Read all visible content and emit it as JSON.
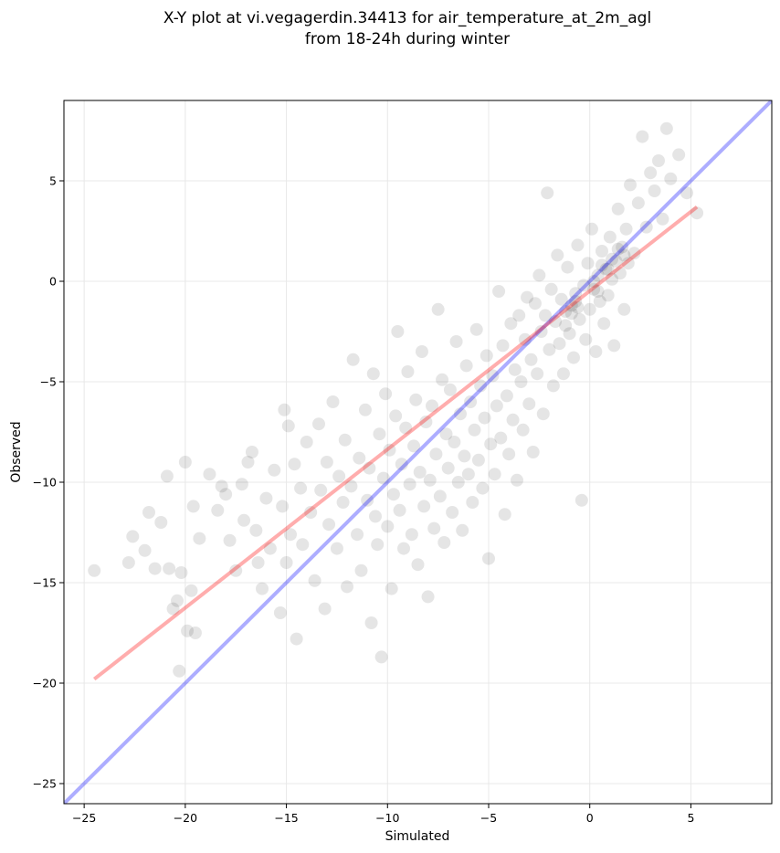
{
  "chart_data": {
    "type": "scatter",
    "title_line1": "X-Y plot at vi.vegagerdin.34413 for air_temperature_at_2m_agl",
    "title_line2": "from 18-24h during winter",
    "xlabel": "Simulated",
    "ylabel": "Observed",
    "xlim": [
      -26,
      9
    ],
    "ylim": [
      -26,
      9
    ],
    "xticks": [
      -25,
      -20,
      -15,
      -10,
      -5,
      0,
      5
    ],
    "yticks": [
      -25,
      -20,
      -15,
      -10,
      -5,
      0,
      5
    ],
    "tick_labels": [
      "−25",
      "−20",
      "−15",
      "−10",
      "−5",
      "0",
      "5"
    ],
    "grid": true,
    "point_color": "#000000",
    "point_opacity": 0.1,
    "identity_line": {
      "color": "#0000ff",
      "x": [
        -26,
        9
      ],
      "y": [
        -26,
        9
      ]
    },
    "fit_line": {
      "color": "#ff0000",
      "x": [
        -24.5,
        5.3
      ],
      "y": [
        -19.8,
        3.7
      ]
    },
    "points": [
      [
        -24.5,
        -14.4
      ],
      [
        -22.8,
        -14.0
      ],
      [
        -22.6,
        -12.7
      ],
      [
        -22.0,
        -13.4
      ],
      [
        -21.8,
        -11.5
      ],
      [
        -21.5,
        -14.3
      ],
      [
        -21.2,
        -12.0
      ],
      [
        -20.9,
        -9.7
      ],
      [
        -20.8,
        -14.3
      ],
      [
        -20.6,
        -16.3
      ],
      [
        -20.4,
        -15.9
      ],
      [
        -20.3,
        -19.4
      ],
      [
        -20.2,
        -14.5
      ],
      [
        -20.0,
        -9.0
      ],
      [
        -19.9,
        -17.4
      ],
      [
        -19.7,
        -15.4
      ],
      [
        -19.6,
        -11.2
      ],
      [
        -19.5,
        -17.5
      ],
      [
        -19.3,
        -12.8
      ],
      [
        -18.8,
        -9.6
      ],
      [
        -18.4,
        -11.4
      ],
      [
        -18.2,
        -10.2
      ],
      [
        -18.0,
        -10.6
      ],
      [
        -17.8,
        -12.9
      ],
      [
        -17.5,
        -14.4
      ],
      [
        -17.2,
        -10.1
      ],
      [
        -17.1,
        -11.9
      ],
      [
        -16.9,
        -9.0
      ],
      [
        -16.7,
        -8.5
      ],
      [
        -16.5,
        -12.4
      ],
      [
        -16.4,
        -14.0
      ],
      [
        -16.2,
        -15.3
      ],
      [
        -16.0,
        -10.8
      ],
      [
        -15.8,
        -13.3
      ],
      [
        -15.6,
        -9.4
      ],
      [
        -15.3,
        -16.5
      ],
      [
        -15.2,
        -11.2
      ],
      [
        -15.1,
        -6.4
      ],
      [
        -15.0,
        -14.0
      ],
      [
        -14.9,
        -7.2
      ],
      [
        -14.8,
        -12.6
      ],
      [
        -14.6,
        -9.1
      ],
      [
        -14.5,
        -17.8
      ],
      [
        -14.3,
        -10.3
      ],
      [
        -14.2,
        -13.1
      ],
      [
        -14.0,
        -8.0
      ],
      [
        -13.8,
        -11.5
      ],
      [
        -13.6,
        -14.9
      ],
      [
        -13.4,
        -7.1
      ],
      [
        -13.3,
        -10.4
      ],
      [
        -13.1,
        -16.3
      ],
      [
        -13.0,
        -9.0
      ],
      [
        -12.9,
        -12.1
      ],
      [
        -12.7,
        -6.0
      ],
      [
        -12.5,
        -13.3
      ],
      [
        -12.4,
        -9.7
      ],
      [
        -12.2,
        -11.0
      ],
      [
        -12.1,
        -7.9
      ],
      [
        -12.0,
        -15.2
      ],
      [
        -11.8,
        -10.2
      ],
      [
        -11.7,
        -3.9
      ],
      [
        -11.5,
        -12.6
      ],
      [
        -11.4,
        -8.8
      ],
      [
        -11.3,
        -14.4
      ],
      [
        -11.1,
        -6.4
      ],
      [
        -11.0,
        -10.9
      ],
      [
        -10.9,
        -9.3
      ],
      [
        -10.8,
        -17.0
      ],
      [
        -10.7,
        -4.6
      ],
      [
        -10.6,
        -11.7
      ],
      [
        -10.5,
        -13.1
      ],
      [
        -10.4,
        -7.6
      ],
      [
        -10.3,
        -18.7
      ],
      [
        -10.2,
        -9.8
      ],
      [
        -10.1,
        -5.6
      ],
      [
        -10.0,
        -12.2
      ],
      [
        -9.9,
        -8.4
      ],
      [
        -9.8,
        -15.3
      ],
      [
        -9.7,
        -10.6
      ],
      [
        -9.6,
        -6.7
      ],
      [
        -9.5,
        -2.5
      ],
      [
        -9.4,
        -11.4
      ],
      [
        -9.3,
        -9.1
      ],
      [
        -9.2,
        -13.3
      ],
      [
        -9.1,
        -7.3
      ],
      [
        -9.0,
        -4.5
      ],
      [
        -8.9,
        -10.1
      ],
      [
        -8.8,
        -12.6
      ],
      [
        -8.7,
        -8.2
      ],
      [
        -8.6,
        -5.9
      ],
      [
        -8.5,
        -14.1
      ],
      [
        -8.4,
        -9.5
      ],
      [
        -8.3,
        -3.5
      ],
      [
        -8.2,
        -11.2
      ],
      [
        -8.1,
        -7.0
      ],
      [
        -8.0,
        -15.7
      ],
      [
        -7.9,
        -9.9
      ],
      [
        -7.8,
        -6.2
      ],
      [
        -7.7,
        -12.3
      ],
      [
        -7.6,
        -8.6
      ],
      [
        -7.5,
        -1.4
      ],
      [
        -7.4,
        -10.7
      ],
      [
        -7.3,
        -4.9
      ],
      [
        -7.2,
        -13.0
      ],
      [
        -7.1,
        -7.6
      ],
      [
        -7.0,
        -9.3
      ],
      [
        -6.9,
        -5.4
      ],
      [
        -6.8,
        -11.5
      ],
      [
        -6.7,
        -8.0
      ],
      [
        -6.6,
        -3.0
      ],
      [
        -6.5,
        -10.0
      ],
      [
        -6.4,
        -6.6
      ],
      [
        -6.3,
        -12.4
      ],
      [
        -6.2,
        -8.7
      ],
      [
        -6.1,
        -4.2
      ],
      [
        -6.0,
        -9.6
      ],
      [
        -5.9,
        -6.0
      ],
      [
        -5.8,
        -11.0
      ],
      [
        -5.7,
        -7.4
      ],
      [
        -5.6,
        -2.4
      ],
      [
        -5.5,
        -8.9
      ],
      [
        -5.4,
        -5.2
      ],
      [
        -5.3,
        -10.3
      ],
      [
        -5.2,
        -6.8
      ],
      [
        -5.1,
        -3.7
      ],
      [
        -5.0,
        -13.8
      ],
      [
        -4.9,
        -8.1
      ],
      [
        -4.8,
        -4.7
      ],
      [
        -4.7,
        -9.6
      ],
      [
        -4.6,
        -6.2
      ],
      [
        -4.5,
        -0.5
      ],
      [
        -4.4,
        -7.8
      ],
      [
        -4.3,
        -3.2
      ],
      [
        -4.2,
        -11.6
      ],
      [
        -4.1,
        -5.7
      ],
      [
        -4.0,
        -8.6
      ],
      [
        -3.9,
        -2.1
      ],
      [
        -3.8,
        -6.9
      ],
      [
        -3.7,
        -4.4
      ],
      [
        -3.6,
        -9.9
      ],
      [
        -3.5,
        -1.7
      ],
      [
        -3.4,
        -5.0
      ],
      [
        -3.3,
        -7.4
      ],
      [
        -3.2,
        -2.9
      ],
      [
        -3.1,
        -0.8
      ],
      [
        -3.0,
        -6.1
      ],
      [
        -2.9,
        -3.9
      ],
      [
        -2.8,
        -8.5
      ],
      [
        -2.7,
        -1.1
      ],
      [
        -2.6,
        -4.6
      ],
      [
        -2.5,
        0.3
      ],
      [
        -2.4,
        -2.5
      ],
      [
        -2.3,
        -6.6
      ],
      [
        -2.2,
        -1.7
      ],
      [
        -2.1,
        4.4
      ],
      [
        -2.0,
        -3.4
      ],
      [
        -1.9,
        -0.4
      ],
      [
        -1.8,
        -5.2
      ],
      [
        -1.7,
        -2.0
      ],
      [
        -1.6,
        1.3
      ],
      [
        -1.5,
        -3.1
      ],
      [
        -1.4,
        -0.9
      ],
      [
        -1.3,
        -4.6
      ],
      [
        -1.2,
        -1.5
      ],
      [
        -1.1,
        0.7
      ],
      [
        -1.0,
        -2.6
      ],
      [
        -0.9,
        -1.2
      ],
      [
        -0.8,
        -3.8
      ],
      [
        -0.7,
        -0.6
      ],
      [
        -0.6,
        1.8
      ],
      [
        -0.5,
        -1.9
      ],
      [
        -0.4,
        -10.9
      ],
      [
        -0.3,
        -0.2
      ],
      [
        -0.2,
        -2.9
      ],
      [
        -0.1,
        0.9
      ],
      [
        0.0,
        -1.4
      ],
      [
        0.1,
        2.6
      ],
      [
        0.2,
        -0.4
      ],
      [
        0.3,
        -3.5
      ],
      [
        0.4,
        0.3
      ],
      [
        0.5,
        -1.0
      ],
      [
        0.6,
        1.5
      ],
      [
        0.7,
        -2.1
      ],
      [
        0.8,
        0.6
      ],
      [
        0.9,
        -0.7
      ],
      [
        1.0,
        2.2
      ],
      [
        1.1,
        0.1
      ],
      [
        1.2,
        -3.2
      ],
      [
        1.3,
        1.0
      ],
      [
        1.4,
        3.6
      ],
      [
        1.5,
        0.4
      ],
      [
        1.6,
        1.7
      ],
      [
        1.7,
        -1.4
      ],
      [
        1.8,
        2.6
      ],
      [
        1.9,
        0.9
      ],
      [
        2.0,
        4.8
      ],
      [
        2.2,
        1.4
      ],
      [
        2.4,
        3.9
      ],
      [
        2.6,
        7.2
      ],
      [
        2.8,
        2.7
      ],
      [
        3.0,
        5.4
      ],
      [
        3.2,
        4.5
      ],
      [
        3.4,
        6.0
      ],
      [
        3.6,
        3.1
      ],
      [
        3.8,
        7.6
      ],
      [
        4.0,
        5.1
      ],
      [
        4.4,
        6.3
      ],
      [
        4.8,
        4.4
      ],
      [
        5.3,
        3.4
      ],
      [
        -0.9,
        -1.6
      ],
      [
        -0.7,
        -1.0
      ],
      [
        0.6,
        0.8
      ],
      [
        1.4,
        1.6
      ],
      [
        0.9,
        0.6
      ],
      [
        -0.6,
        -1.3
      ],
      [
        1.7,
        1.3
      ],
      [
        0.2,
        0.0
      ],
      [
        -1.2,
        -2.2
      ],
      [
        0.4,
        -0.5
      ],
      [
        1.1,
        1.1
      ]
    ]
  }
}
